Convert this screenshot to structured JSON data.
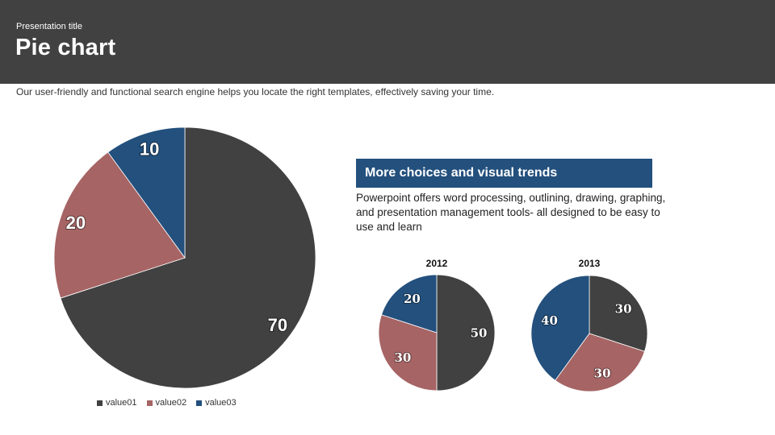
{
  "header": {
    "presentation_title": "Presentation title",
    "title": "Pie chart"
  },
  "subtitle": "Our user-friendly and functional search engine helps you locate the right templates, effectively saving your time.",
  "callout": {
    "heading": "More choices and visual trends",
    "body": "Powerpoint offers word processing, outlining, drawing, graphing, and presentation management tools- all designed to be easy to use and learn"
  },
  "colors": {
    "value01": "#414141",
    "value02": "#a66464",
    "value03": "#23507d",
    "header_bg": "#414141",
    "callout_bg": "#23507d"
  },
  "chart_data": [
    {
      "type": "pie",
      "title": "",
      "categories": [
        "value01",
        "value02",
        "value03"
      ],
      "values": [
        70,
        20,
        10
      ],
      "legend": {
        "position": "bottom",
        "entries": [
          "value01",
          "value02",
          "value03"
        ]
      }
    },
    {
      "type": "pie",
      "title": "2012",
      "categories": [
        "value01",
        "value02",
        "value03"
      ],
      "values": [
        50,
        30,
        20
      ]
    },
    {
      "type": "pie",
      "title": "2013",
      "categories": [
        "value01",
        "value02",
        "value03"
      ],
      "values": [
        30,
        30,
        40
      ]
    }
  ]
}
